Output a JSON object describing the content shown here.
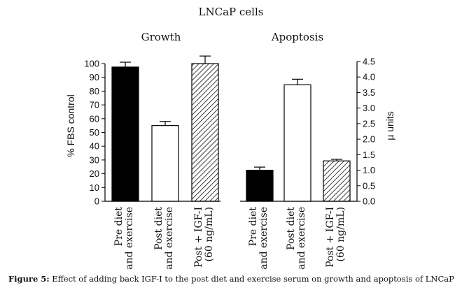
{
  "figure": {
    "label": "Figure 5:",
    "text": "Effect of adding back IGF-I to the post diet and exercise serum on growth and apoptosis of LNCaP cells."
  },
  "colors": {
    "black_fill": "#000000",
    "white_fill": "#ffffff",
    "hatch_stroke": "#000000"
  },
  "chart_data": [
    {
      "type": "bar",
      "panel": "left",
      "supertitle": "LNCaP cells",
      "title": "Growth",
      "ylabel": "% FBS control",
      "xlabel": "",
      "ylim": [
        0,
        100
      ],
      "yticks": [
        0,
        10,
        20,
        30,
        40,
        50,
        60,
        70,
        80,
        90,
        100
      ],
      "ytick_labels": [
        "0",
        "10",
        "20",
        "30",
        "40",
        "50",
        "60",
        "70",
        "80",
        "90",
        "100"
      ],
      "axis_side": "left",
      "categories": [
        [
          "Pre diet",
          "and exercise"
        ],
        [
          "Post diet",
          "and exercise"
        ],
        [
          "Post + IGF-I",
          "(60 ng/mL)"
        ]
      ],
      "values": [
        97.5,
        55,
        100
      ],
      "errors": [
        3.5,
        3,
        5.5
      ],
      "fills": [
        "black",
        "white",
        "hatched"
      ],
      "grid": false
    },
    {
      "type": "bar",
      "panel": "right",
      "title": "Apoptosis",
      "ylabel": "µ units",
      "xlabel": "",
      "ylim": [
        0,
        4.5
      ],
      "yticks": [
        0,
        0.5,
        1,
        1.5,
        2,
        2.5,
        3,
        3.5,
        4,
        4.5
      ],
      "ytick_labels": [
        "0.0",
        "0.5",
        "1.0",
        "1.5",
        "2.0",
        "2.5",
        "3.0",
        "3.5",
        "4.0",
        "4.5"
      ],
      "axis_side": "right",
      "categories": [
        [
          "Pre diet",
          "and exercise"
        ],
        [
          "Post diet",
          "and exercise"
        ],
        [
          "Post + IGF-I",
          "(60 ng/mL)"
        ]
      ],
      "values": [
        1.0,
        3.75,
        1.3
      ],
      "errors": [
        0.1,
        0.18,
        0.05
      ],
      "fills": [
        "black",
        "white",
        "hatched"
      ],
      "grid": false
    }
  ]
}
